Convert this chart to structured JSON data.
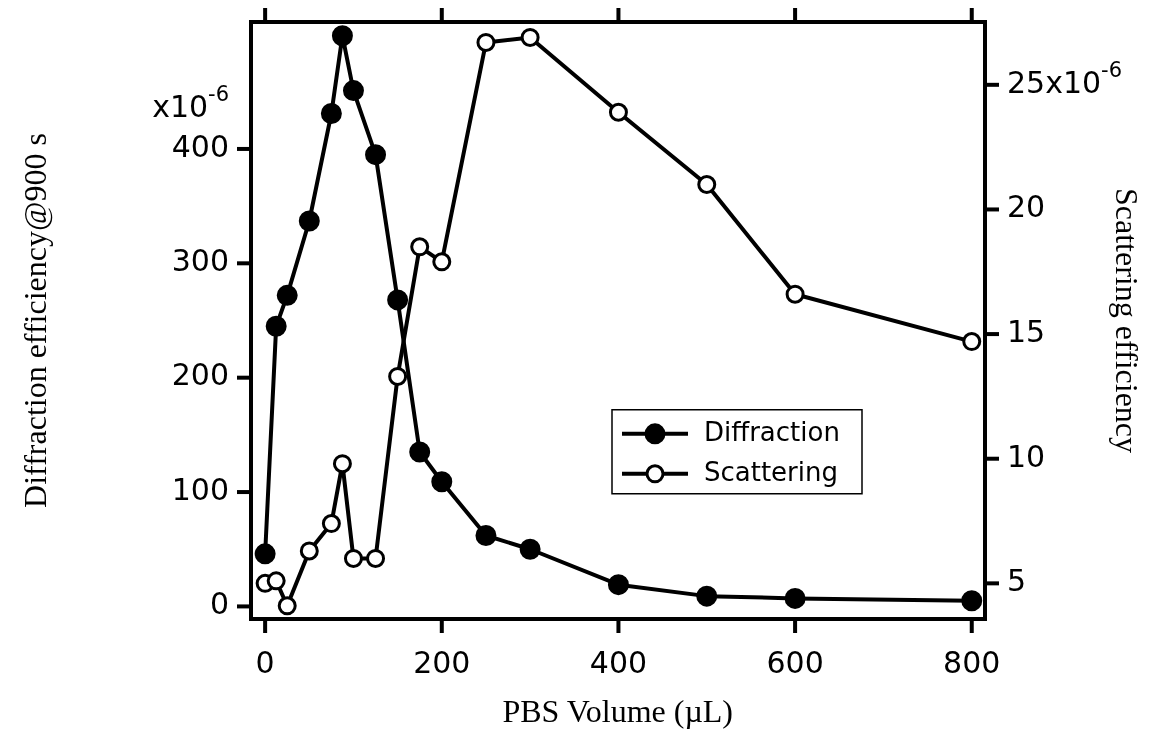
{
  "chart_data": {
    "type": "line",
    "xlabel": "PBS Volume (µL)",
    "ylabel": "Diffraction efficiency@900 s",
    "y2label": "Scattering efficiency",
    "x": [
      0,
      12.5,
      25,
      50,
      75,
      87.5,
      100,
      125,
      150,
      175,
      200,
      250,
      300,
      400,
      500,
      600,
      800
    ],
    "series": [
      {
        "name": "Diffraction",
        "color": "#000000",
        "marker": "circle",
        "values": [
          46,
          245,
          272,
          337,
          431,
          499,
          451,
          395,
          268,
          135,
          109,
          62,
          50,
          19,
          9,
          7,
          5
        ]
      },
      {
        "name": "Scattering",
        "color": "#000000",
        "marker": "open-circle",
        "axis": "y2",
        "values": [
          5.0,
          5.1,
          4.1,
          6.3,
          7.4,
          9.8,
          6.0,
          6.0,
          13.3,
          18.5,
          17.9,
          26.7,
          26.9,
          23.9,
          21.0,
          16.6,
          14.7
        ]
      }
    ],
    "xlim": [
      -16,
      815
    ],
    "xticks": [
      0,
      200,
      400,
      600,
      800
    ],
    "ylim": [
      -11,
      511
    ],
    "yticks": [
      0,
      100,
      200,
      300,
      400
    ],
    "y2lim": [
      3.57,
      27.52
    ],
    "y2ticks": [
      5,
      10,
      15,
      20,
      25
    ],
    "annotations": [
      "x10$^{-6}$",
      "x10$^{-6}$"
    ],
    "legend": "right",
    "line_style": "solid"
  }
}
